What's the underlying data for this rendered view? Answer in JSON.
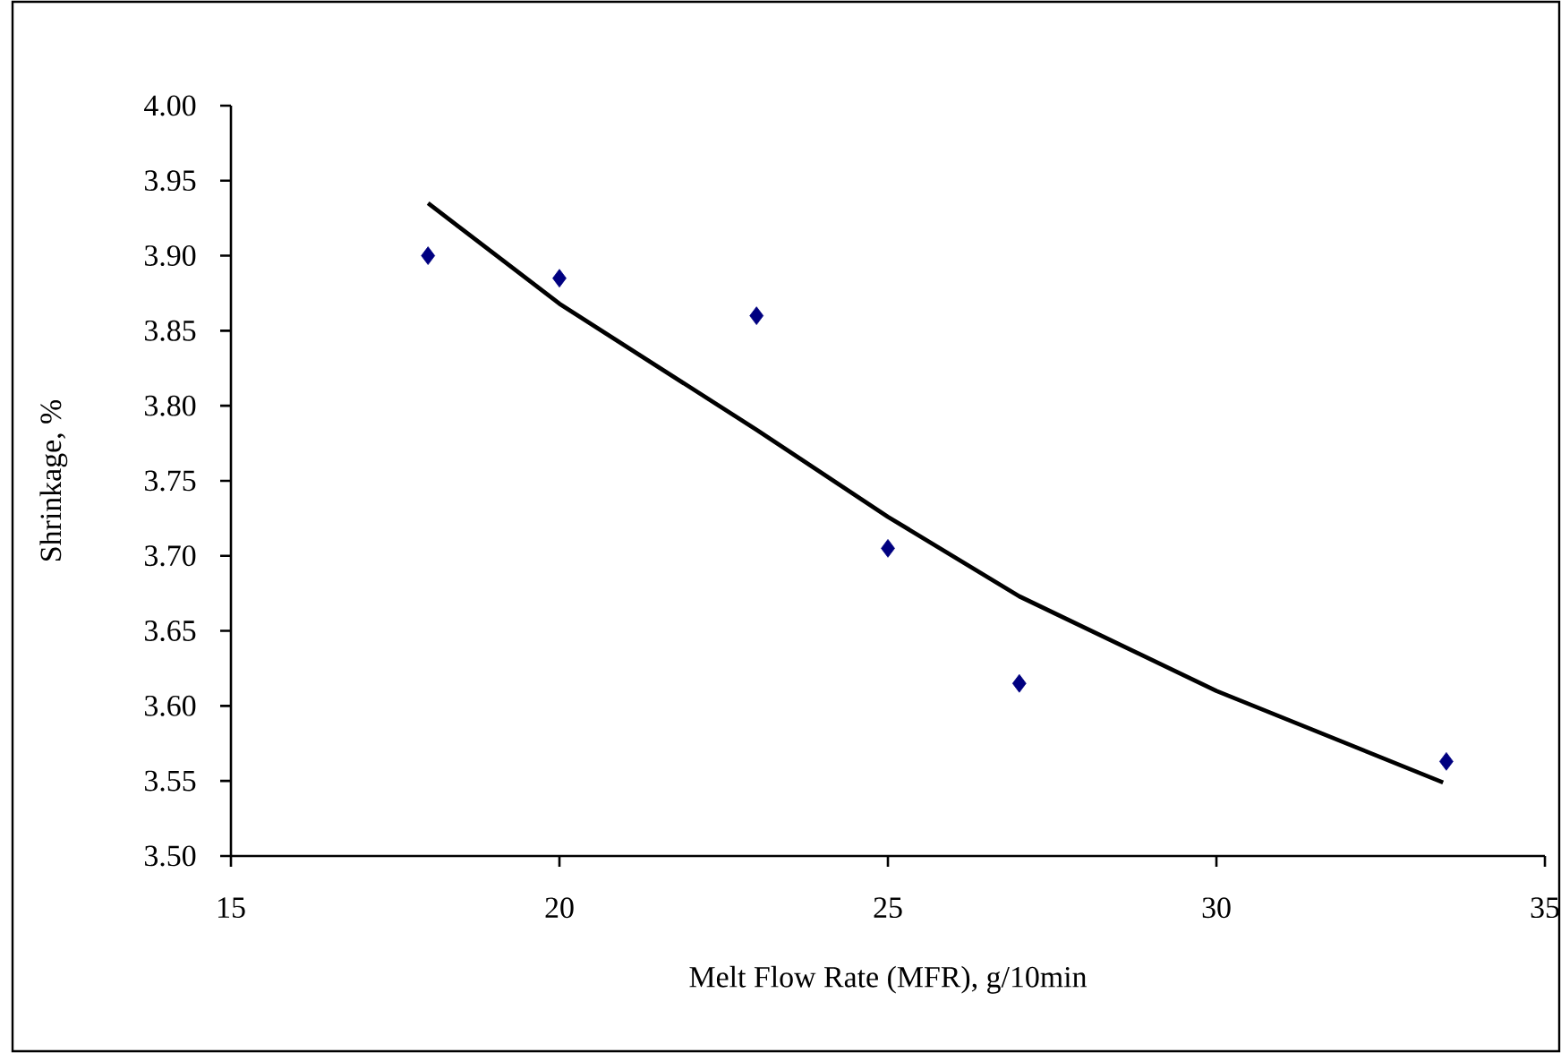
{
  "chart_data": {
    "type": "scatter",
    "xlabel": "Melt Flow Rate (MFR), g/10min",
    "ylabel": "Shrinkage, %",
    "xlim": [
      15,
      35
    ],
    "xticks": [
      15,
      20,
      25,
      30,
      35
    ],
    "ylim": [
      3.5,
      4.0
    ],
    "yticks": [
      {
        "value": 3.5,
        "label": "3.50"
      },
      {
        "value": 3.55,
        "label": "3.55"
      },
      {
        "value": 3.6,
        "label": "3.60"
      },
      {
        "value": 3.65,
        "label": "3.65"
      },
      {
        "value": 3.7,
        "label": "3.70"
      },
      {
        "value": 3.75,
        "label": "3.75"
      },
      {
        "value": 3.8,
        "label": "3.80"
      },
      {
        "value": 3.85,
        "label": "3.85"
      },
      {
        "value": 3.9,
        "label": "3.90"
      },
      {
        "value": 3.95,
        "label": "3.95"
      },
      {
        "value": 4.0,
        "label": "4.00"
      }
    ],
    "series": [
      {
        "type": "scatter",
        "marker": "diamond",
        "color": "#000080",
        "x": [
          18,
          20,
          23,
          25,
          27,
          33.5
        ],
        "values": [
          3.9,
          3.885,
          3.86,
          3.705,
          3.615,
          3.563
        ]
      },
      {
        "type": "line",
        "marker": "none",
        "line_style": "solid",
        "color": "#000000",
        "x": [
          18,
          20,
          23,
          25,
          27,
          30,
          33.45
        ],
        "values": [
          3.935,
          3.868,
          3.784,
          3.726,
          3.673,
          3.61,
          3.549
        ]
      }
    ]
  }
}
